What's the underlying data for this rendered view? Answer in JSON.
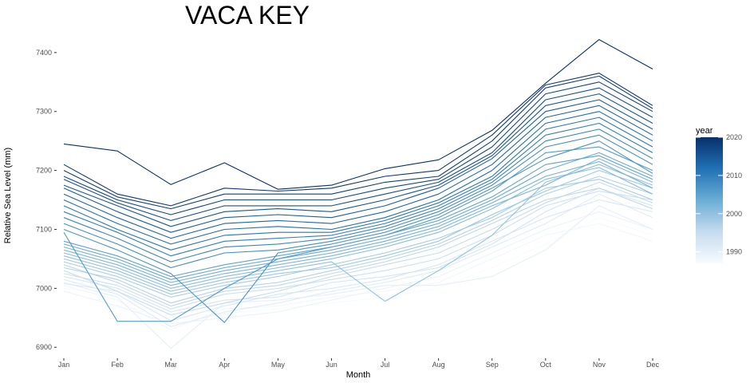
{
  "chart_data": {
    "type": "line",
    "title": "VACA KEY",
    "xlabel": "Month",
    "ylabel": "Relative Sea Level (mm)",
    "categories": [
      "Jan",
      "Feb",
      "Mar",
      "Apr",
      "May",
      "Jun",
      "Jul",
      "Aug",
      "Sep",
      "Oct",
      "Nov",
      "Dec"
    ],
    "ylim": [
      6880,
      7435
    ],
    "yticks": [
      6900,
      7000,
      7100,
      7200,
      7300,
      7400
    ],
    "grid": false,
    "legend": {
      "title": "year",
      "position": "right",
      "ticks": [
        1990,
        2000,
        2010,
        2020
      ],
      "range": [
        1987,
        2020
      ],
      "colors": [
        "#f7fbff",
        "#c6dbef",
        "#6baed6",
        "#2171b5",
        "#08306b"
      ]
    },
    "series": [
      {
        "year": 1987,
        "values": [
          7000,
          6988,
          6950,
          6958,
          6965,
          6975,
          6985,
          7000,
          7035,
          7075,
          7120,
          7090
        ]
      },
      {
        "year": 1988,
        "values": [
          7005,
          6980,
          6930,
          6965,
          6970,
          6985,
          6995,
          7010,
          7050,
          7090,
          7110,
          7080
        ]
      },
      {
        "year": 1989,
        "values": [
          6995,
          6970,
          6940,
          6950,
          6960,
          6980,
          7000,
          7020,
          7060,
          7100,
          7130,
          7100
        ]
      },
      {
        "year": 1990,
        "values": [
          7010,
          6985,
          6898,
          6975,
          6980,
          6990,
          7005,
          7005,
          7020,
          7065,
          7140,
          7100
        ]
      },
      {
        "year": 1991,
        "values": [
          7015,
          6990,
          6935,
          6960,
          6975,
          6995,
          7010,
          7030,
          7070,
          7110,
          7160,
          7120
        ]
      },
      {
        "year": 1992,
        "values": [
          7008,
          6995,
          6945,
          6970,
          6990,
          7000,
          7015,
          7040,
          7080,
          7120,
          7150,
          7130
        ]
      },
      {
        "year": 1993,
        "values": [
          7020,
          7000,
          6960,
          6980,
          6985,
          7010,
          7020,
          7035,
          7075,
          7130,
          7170,
          7140
        ]
      },
      {
        "year": 1994,
        "values": [
          7025,
          7005,
          6965,
          6990,
          7000,
          7015,
          7030,
          7050,
          7090,
          7140,
          7165,
          7150
        ]
      },
      {
        "year": 1995,
        "values": [
          7030,
          6995,
          6955,
          6975,
          6995,
          7020,
          7040,
          7060,
          7100,
          7145,
          7180,
          7145
        ]
      },
      {
        "year": 1996,
        "values": [
          7040,
          7010,
          6970,
          6995,
          7005,
          7025,
          7045,
          7070,
          7110,
          7150,
          7170,
          7135
        ]
      },
      {
        "year": 1997,
        "values": [
          7035,
          7015,
          6975,
          7000,
          7010,
          7030,
          7050,
          7075,
          7115,
          7160,
          7190,
          7160
        ]
      },
      {
        "year": 1998,
        "values": [
          7045,
          7020,
          6985,
          7005,
          7020,
          7040,
          7060,
          7085,
          7120,
          7170,
          7185,
          7150
        ]
      },
      {
        "year": 1999,
        "values": [
          7050,
          7025,
          6990,
          7010,
          7025,
          7035,
          7055,
          7080,
          7125,
          7165,
          7200,
          7170
        ]
      },
      {
        "year": 2000,
        "values": [
          7055,
          7030,
          6995,
          7015,
          7030,
          7045,
          6978,
          7030,
          7090,
          7180,
          7210,
          7175
        ]
      },
      {
        "year": 2001,
        "values": [
          7060,
          7035,
          7000,
          7020,
          7035,
          7050,
          7070,
          7095,
          7135,
          7185,
          7205,
          7160
        ]
      },
      {
        "year": 2002,
        "values": [
          7065,
          7040,
          7005,
          7025,
          7040,
          7055,
          7075,
          7100,
          7140,
          7175,
          7220,
          7180
        ]
      },
      {
        "year": 2003,
        "values": [
          7070,
          7045,
          7010,
          7030,
          7045,
          7060,
          7080,
          7105,
          7145,
          7190,
          7215,
          7170
        ]
      },
      {
        "year": 2004,
        "values": [
          7075,
          7050,
          7015,
          7035,
          7050,
          7065,
          7085,
          7110,
          7150,
          7200,
          7230,
          7190
        ]
      },
      {
        "year": 2005,
        "values": [
          7080,
          7055,
          7020,
          7040,
          7055,
          7070,
          7090,
          7115,
          7155,
          7210,
          7225,
          7185
        ]
      },
      {
        "year": 2006,
        "values": [
          7095,
          6944,
          6944,
          7000,
          7050,
          7070,
          7090,
          7120,
          7165,
          7230,
          7240,
          7200
        ]
      },
      {
        "year": 2007,
        "values": [
          7100,
          7065,
          7025,
          6942,
          7060,
          7075,
          7095,
          7125,
          7170,
          7220,
          7250,
          7195
        ]
      },
      {
        "year": 2008,
        "values": [
          7110,
          7075,
          7035,
          7060,
          7065,
          7080,
          7100,
          7130,
          7175,
          7240,
          7260,
          7210
        ]
      },
      {
        "year": 2009,
        "values": [
          7120,
          7085,
          7045,
          7070,
          7075,
          7085,
          7105,
          7135,
          7180,
          7250,
          7270,
          7220
        ]
      },
      {
        "year": 2010,
        "values": [
          7130,
          7095,
          7055,
          7080,
          7085,
          7090,
          7110,
          7140,
          7185,
          7260,
          7280,
          7230
        ]
      },
      {
        "year": 2011,
        "values": [
          7140,
          7100,
          7065,
          7090,
          7095,
          7095,
          7115,
          7145,
          7190,
          7270,
          7290,
          7240
        ]
      },
      {
        "year": 2012,
        "values": [
          7150,
          7110,
          7075,
          7100,
          7105,
          7100,
          7120,
          7150,
          7200,
          7280,
          7300,
          7250
        ]
      },
      {
        "year": 2013,
        "values": [
          7160,
          7120,
          7085,
          7110,
          7115,
          7110,
          7130,
          7160,
          7210,
          7290,
          7310,
          7260
        ]
      },
      {
        "year": 2014,
        "values": [
          7170,
          7130,
          7095,
          7120,
          7125,
          7120,
          7140,
          7170,
          7220,
          7300,
          7320,
          7270
        ]
      },
      {
        "year": 2015,
        "values": [
          7175,
          7140,
          7105,
          7130,
          7135,
          7130,
          7150,
          7175,
          7225,
          7310,
          7330,
          7280
        ]
      },
      {
        "year": 2016,
        "values": [
          7185,
          7145,
          7115,
          7140,
          7140,
          7140,
          7160,
          7180,
          7230,
          7320,
          7340,
          7290
        ]
      },
      {
        "year": 2017,
        "values": [
          7190,
          7150,
          7125,
          7150,
          7150,
          7150,
          7170,
          7185,
          7240,
          7330,
          7350,
          7300
        ]
      },
      {
        "year": 2018,
        "values": [
          7200,
          7155,
          7135,
          7160,
          7160,
          7160,
          7180,
          7190,
          7250,
          7340,
          7360,
          7305
        ]
      },
      {
        "year": 2019,
        "values": [
          7210,
          7160,
          7140,
          7170,
          7165,
          7170,
          7190,
          7200,
          7260,
          7345,
          7365,
          7310
        ]
      },
      {
        "year": 2020,
        "values": [
          7245,
          7233,
          7176,
          7213,
          7168,
          7175,
          7203,
          7218,
          7268,
          7348,
          7422,
          7372
        ]
      }
    ]
  }
}
